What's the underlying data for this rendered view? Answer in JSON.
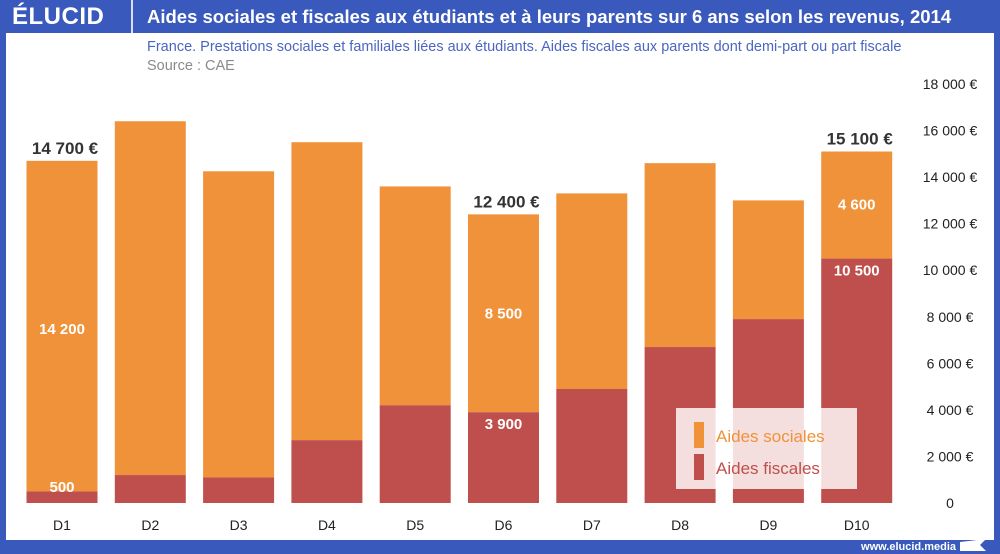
{
  "header": {
    "logo": "ÉLUCID",
    "title": "Aides sociales et fiscales aux étudiants et à leurs parents sur 6 ans selon les revenus, 2014",
    "subtitle": "France. Prestations sociales et familiales liées aux étudiants. Aides fiscales aux parents dont demi-part ou part fiscale",
    "source": "Source : CAE"
  },
  "footer": {
    "url": "www.elucid.media"
  },
  "colors": {
    "frame": "#3a59bd",
    "sociales": "#f0923a",
    "fiscales": "#bf4f4c"
  },
  "chart_data": {
    "type": "bar",
    "stacked": true,
    "categories": [
      "D1",
      "D2",
      "D3",
      "D4",
      "D5",
      "D6",
      "D7",
      "D8",
      "D9",
      "D10"
    ],
    "series": [
      {
        "name": "Aides fiscales",
        "color": "#bf4f4c",
        "values": [
          500,
          1200,
          1100,
          2700,
          4200,
          3900,
          4900,
          6700,
          7900,
          10500
        ]
      },
      {
        "name": "Aides sociales",
        "color": "#f0923a",
        "values": [
          14200,
          15200,
          13150,
          12800,
          9400,
          8500,
          8400,
          7900,
          5100,
          4600
        ]
      }
    ],
    "yaxis": {
      "position": "right",
      "range": [
        0,
        18000
      ],
      "ticks": [
        0,
        2000,
        4000,
        6000,
        8000,
        10000,
        12000,
        14000,
        16000,
        18000
      ],
      "tick_labels": [
        "0",
        "2 000 €",
        "4 000 €",
        "6 000 €",
        "8 000 €",
        "10 000 €",
        "12 000 €",
        "14 000 €",
        "16 000 €",
        "18 000 €"
      ]
    },
    "data_labels": [
      {
        "category": "D1",
        "series": "Aides sociales",
        "text": "14 200"
      },
      {
        "category": "D1",
        "series": "Aides fiscales",
        "text": "500"
      },
      {
        "category": "D6",
        "series": "Aides sociales",
        "text": "8 500"
      },
      {
        "category": "D6",
        "series": "Aides fiscales",
        "text": "3 900"
      },
      {
        "category": "D10",
        "series": "Aides sociales",
        "text": "4 600"
      },
      {
        "category": "D10",
        "series": "Aides fiscales",
        "text": "10 500"
      }
    ],
    "total_labels": [
      {
        "category": "D1",
        "text": "14 700 €"
      },
      {
        "category": "D6",
        "text": "12 400 €"
      },
      {
        "category": "D10",
        "text": "15 100 €"
      }
    ],
    "legend": {
      "placement": "bottom-right",
      "entries": [
        "Aides sociales",
        "Aides fiscales"
      ]
    },
    "grid": false
  }
}
